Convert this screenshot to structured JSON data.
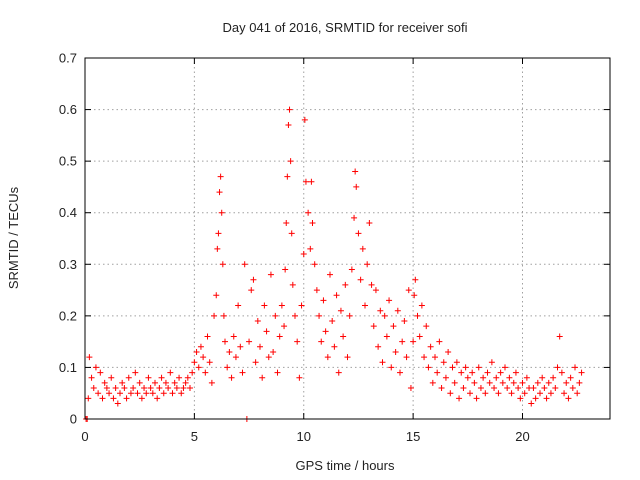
{
  "chart_data": {
    "type": "scatter",
    "title": "Day 041 of 2016, SRMTID for receiver sofi",
    "xlabel": "GPS time / hours",
    "ylabel": "SRMTID / TECUs",
    "xlim": [
      0,
      24
    ],
    "ylim": [
      0,
      0.7
    ],
    "xticks": [
      0,
      5,
      10,
      15,
      20
    ],
    "xtick_labels": [
      "0",
      "5",
      "10",
      "15",
      "20"
    ],
    "yticks": [
      0,
      0.1,
      0.2,
      0.3,
      0.4,
      0.5,
      0.6,
      0.7
    ],
    "ytick_labels": [
      "0",
      "0.1",
      "0.2",
      "0.3",
      "0.4",
      "0.5",
      "0.6",
      "0.7"
    ],
    "grid": true,
    "marker": "+",
    "marker_color": "#ff0000",
    "series": [
      {
        "name": "SRMTID",
        "points": [
          [
            0.05,
            0.0
          ],
          [
            0.1,
            0.0
          ],
          [
            0.15,
            0.04
          ],
          [
            0.2,
            0.12
          ],
          [
            0.3,
            0.08
          ],
          [
            0.4,
            0.06
          ],
          [
            0.5,
            0.1
          ],
          [
            0.6,
            0.05
          ],
          [
            0.7,
            0.09
          ],
          [
            0.8,
            0.04
          ],
          [
            0.9,
            0.07
          ],
          [
            1.0,
            0.06
          ],
          [
            1.1,
            0.05
          ],
          [
            1.2,
            0.08
          ],
          [
            1.3,
            0.04
          ],
          [
            1.4,
            0.06
          ],
          [
            1.5,
            0.03
          ],
          [
            1.6,
            0.05
          ],
          [
            1.7,
            0.07
          ],
          [
            1.8,
            0.06
          ],
          [
            1.9,
            0.04
          ],
          [
            2.0,
            0.08
          ],
          [
            2.1,
            0.05
          ],
          [
            2.2,
            0.06
          ],
          [
            2.3,
            0.09
          ],
          [
            2.4,
            0.05
          ],
          [
            2.5,
            0.07
          ],
          [
            2.6,
            0.04
          ],
          [
            2.7,
            0.06
          ],
          [
            2.8,
            0.05
          ],
          [
            2.9,
            0.08
          ],
          [
            3.0,
            0.06
          ],
          [
            3.1,
            0.05
          ],
          [
            3.2,
            0.07
          ],
          [
            3.3,
            0.04
          ],
          [
            3.4,
            0.06
          ],
          [
            3.5,
            0.08
          ],
          [
            3.6,
            0.05
          ],
          [
            3.7,
            0.07
          ],
          [
            3.8,
            0.06
          ],
          [
            3.9,
            0.09
          ],
          [
            4.0,
            0.05
          ],
          [
            4.1,
            0.07
          ],
          [
            4.2,
            0.06
          ],
          [
            4.3,
            0.08
          ],
          [
            4.4,
            0.05
          ],
          [
            4.5,
            0.06
          ],
          [
            4.6,
            0.07
          ],
          [
            4.7,
            0.08
          ],
          [
            4.8,
            0.06
          ],
          [
            4.9,
            0.09
          ],
          [
            5.0,
            0.11
          ],
          [
            5.1,
            0.13
          ],
          [
            5.2,
            0.1
          ],
          [
            5.3,
            0.14
          ],
          [
            5.4,
            0.12
          ],
          [
            5.5,
            0.09
          ],
          [
            5.6,
            0.16
          ],
          [
            5.7,
            0.11
          ],
          [
            5.8,
            0.07
          ],
          [
            5.9,
            0.2
          ],
          [
            6.0,
            0.24
          ],
          [
            6.05,
            0.33
          ],
          [
            6.1,
            0.36
          ],
          [
            6.15,
            0.44
          ],
          [
            6.2,
            0.47
          ],
          [
            6.25,
            0.4
          ],
          [
            6.3,
            0.3
          ],
          [
            6.35,
            0.2
          ],
          [
            6.4,
            0.15
          ],
          [
            6.5,
            0.1
          ],
          [
            6.6,
            0.13
          ],
          [
            6.7,
            0.08
          ],
          [
            6.8,
            0.16
          ],
          [
            6.9,
            0.12
          ],
          [
            7.0,
            0.22
          ],
          [
            7.1,
            0.14
          ],
          [
            7.2,
            0.09
          ],
          [
            7.3,
            0.3
          ],
          [
            7.4,
            0.0
          ],
          [
            7.5,
            0.15
          ],
          [
            7.6,
            0.25
          ],
          [
            7.7,
            0.27
          ],
          [
            7.8,
            0.11
          ],
          [
            7.9,
            0.19
          ],
          [
            8.0,
            0.14
          ],
          [
            8.1,
            0.08
          ],
          [
            8.2,
            0.22
          ],
          [
            8.3,
            0.17
          ],
          [
            8.4,
            0.12
          ],
          [
            8.5,
            0.28
          ],
          [
            8.6,
            0.13
          ],
          [
            8.7,
            0.2
          ],
          [
            8.8,
            0.09
          ],
          [
            8.9,
            0.16
          ],
          [
            9.0,
            0.22
          ],
          [
            9.1,
            0.18
          ],
          [
            9.15,
            0.29
          ],
          [
            9.2,
            0.38
          ],
          [
            9.25,
            0.47
          ],
          [
            9.3,
            0.57
          ],
          [
            9.35,
            0.6
          ],
          [
            9.4,
            0.5
          ],
          [
            9.45,
            0.36
          ],
          [
            9.5,
            0.26
          ],
          [
            9.6,
            0.2
          ],
          [
            9.7,
            0.15
          ],
          [
            9.8,
            0.08
          ],
          [
            9.9,
            0.22
          ],
          [
            10.0,
            0.32
          ],
          [
            10.05,
            0.58
          ],
          [
            10.1,
            0.46
          ],
          [
            10.2,
            0.4
          ],
          [
            10.3,
            0.33
          ],
          [
            10.35,
            0.46
          ],
          [
            10.4,
            0.38
          ],
          [
            10.5,
            0.3
          ],
          [
            10.6,
            0.25
          ],
          [
            10.7,
            0.2
          ],
          [
            10.8,
            0.15
          ],
          [
            10.9,
            0.23
          ],
          [
            11.0,
            0.17
          ],
          [
            11.1,
            0.12
          ],
          [
            11.2,
            0.28
          ],
          [
            11.3,
            0.19
          ],
          [
            11.4,
            0.14
          ],
          [
            11.5,
            0.24
          ],
          [
            11.6,
            0.09
          ],
          [
            11.7,
            0.21
          ],
          [
            11.8,
            0.16
          ],
          [
            11.9,
            0.26
          ],
          [
            12.0,
            0.12
          ],
          [
            12.1,
            0.2
          ],
          [
            12.2,
            0.29
          ],
          [
            12.3,
            0.39
          ],
          [
            12.35,
            0.48
          ],
          [
            12.4,
            0.45
          ],
          [
            12.5,
            0.36
          ],
          [
            12.6,
            0.27
          ],
          [
            12.7,
            0.33
          ],
          [
            12.8,
            0.22
          ],
          [
            12.9,
            0.3
          ],
          [
            13.0,
            0.38
          ],
          [
            13.1,
            0.26
          ],
          [
            13.2,
            0.18
          ],
          [
            13.3,
            0.25
          ],
          [
            13.4,
            0.14
          ],
          [
            13.5,
            0.21
          ],
          [
            13.6,
            0.11
          ],
          [
            13.7,
            0.2
          ],
          [
            13.8,
            0.16
          ],
          [
            13.9,
            0.23
          ],
          [
            14.0,
            0.1
          ],
          [
            14.1,
            0.18
          ],
          [
            14.2,
            0.13
          ],
          [
            14.3,
            0.21
          ],
          [
            14.4,
            0.09
          ],
          [
            14.5,
            0.15
          ],
          [
            14.6,
            0.19
          ],
          [
            14.7,
            0.12
          ],
          [
            14.8,
            0.25
          ],
          [
            14.9,
            0.06
          ],
          [
            15.0,
            0.15
          ],
          [
            15.05,
            0.24
          ],
          [
            15.1,
            0.27
          ],
          [
            15.2,
            0.2
          ],
          [
            15.3,
            0.16
          ],
          [
            15.4,
            0.22
          ],
          [
            15.5,
            0.12
          ],
          [
            15.6,
            0.18
          ],
          [
            15.7,
            0.1
          ],
          [
            15.8,
            0.14
          ],
          [
            15.9,
            0.07
          ],
          [
            16.0,
            0.12
          ],
          [
            16.1,
            0.09
          ],
          [
            16.2,
            0.15
          ],
          [
            16.3,
            0.06
          ],
          [
            16.4,
            0.11
          ],
          [
            16.5,
            0.08
          ],
          [
            16.6,
            0.13
          ],
          [
            16.7,
            0.05
          ],
          [
            16.8,
            0.1
          ],
          [
            16.9,
            0.07
          ],
          [
            17.0,
            0.11
          ],
          [
            17.1,
            0.04
          ],
          [
            17.2,
            0.09
          ],
          [
            17.3,
            0.06
          ],
          [
            17.4,
            0.1
          ],
          [
            17.5,
            0.08
          ],
          [
            17.6,
            0.05
          ],
          [
            17.7,
            0.09
          ],
          [
            17.8,
            0.07
          ],
          [
            17.9,
            0.04
          ],
          [
            18.0,
            0.1
          ],
          [
            18.1,
            0.06
          ],
          [
            18.2,
            0.08
          ],
          [
            18.3,
            0.05
          ],
          [
            18.4,
            0.09
          ],
          [
            18.5,
            0.07
          ],
          [
            18.6,
            0.11
          ],
          [
            18.7,
            0.06
          ],
          [
            18.8,
            0.08
          ],
          [
            18.9,
            0.05
          ],
          [
            19.0,
            0.09
          ],
          [
            19.1,
            0.07
          ],
          [
            19.2,
            0.1
          ],
          [
            19.3,
            0.06
          ],
          [
            19.4,
            0.08
          ],
          [
            19.5,
            0.05
          ],
          [
            19.6,
            0.07
          ],
          [
            19.7,
            0.09
          ],
          [
            19.8,
            0.06
          ],
          [
            19.9,
            0.04
          ],
          [
            20.0,
            0.07
          ],
          [
            20.1,
            0.05
          ],
          [
            20.2,
            0.08
          ],
          [
            20.3,
            0.06
          ],
          [
            20.4,
            0.03
          ],
          [
            20.5,
            0.06
          ],
          [
            20.6,
            0.04
          ],
          [
            20.7,
            0.07
          ],
          [
            20.8,
            0.05
          ],
          [
            20.9,
            0.08
          ],
          [
            21.0,
            0.06
          ],
          [
            21.1,
            0.04
          ],
          [
            21.2,
            0.07
          ],
          [
            21.3,
            0.05
          ],
          [
            21.4,
            0.08
          ],
          [
            21.5,
            0.06
          ],
          [
            21.6,
            0.1
          ],
          [
            21.7,
            0.16
          ],
          [
            21.8,
            0.09
          ],
          [
            21.9,
            0.05
          ],
          [
            22.0,
            0.07
          ],
          [
            22.1,
            0.04
          ],
          [
            22.2,
            0.08
          ],
          [
            22.3,
            0.06
          ],
          [
            22.4,
            0.1
          ],
          [
            22.5,
            0.05
          ],
          [
            22.6,
            0.07
          ],
          [
            22.7,
            0.09
          ]
        ]
      }
    ]
  }
}
